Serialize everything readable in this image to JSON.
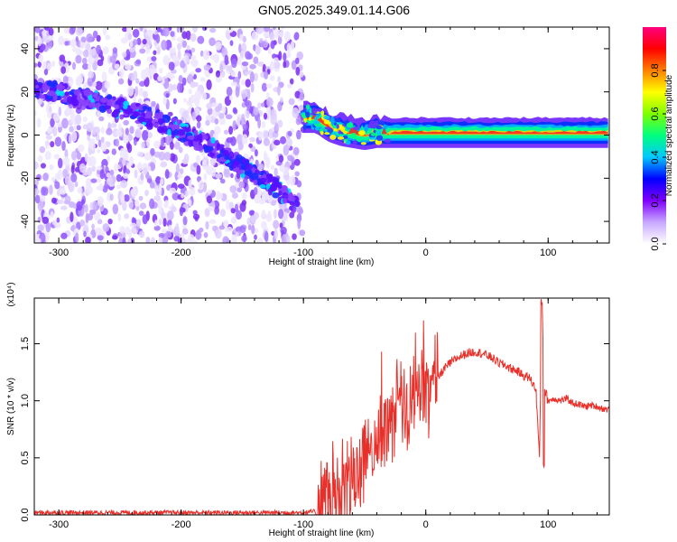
{
  "title": "GN05.2025.349.01.14.G06",
  "chart_data": [
    {
      "type": "heatmap",
      "xlabel": "Height of straight line (km)",
      "ylabel": "Frequency (Hz)",
      "xlim": [
        -320,
        150
      ],
      "ylim": [
        -50,
        50
      ],
      "xticks": [
        -300,
        -200,
        -100,
        0,
        100
      ],
      "yticks": [
        -40,
        -20,
        0,
        20,
        40
      ],
      "colorbar": {
        "label": "Normalized spectral amplitude",
        "range": [
          0.0,
          1.0
        ],
        "ticks": [
          "0.0",
          "0.2",
          "0.4",
          "0.6",
          "0.8"
        ],
        "colors": [
          "#ffffff",
          "#c8a8ff",
          "#8000ff",
          "#0000ff",
          "#00c8ff",
          "#00ff80",
          "#80ff00",
          "#ffff00",
          "#ff8000",
          "#ff0000",
          "#ff0080"
        ]
      },
      "ridge": [
        {
          "x": -320,
          "y": 22
        },
        {
          "x": -300,
          "y": 20
        },
        {
          "x": -280,
          "y": 17
        },
        {
          "x": -260,
          "y": 14
        },
        {
          "x": -240,
          "y": 11
        },
        {
          "x": -220,
          "y": 7
        },
        {
          "x": -200,
          "y": 2
        },
        {
          "x": -180,
          "y": -4
        },
        {
          "x": -160,
          "y": -11
        },
        {
          "x": -140,
          "y": -18
        },
        {
          "x": -120,
          "y": -25
        },
        {
          "x": -105,
          "y": -34
        },
        {
          "x": -100,
          "y": 8
        },
        {
          "x": -90,
          "y": 8
        },
        {
          "x": -80,
          "y": 4
        },
        {
          "x": -70,
          "y": 2
        },
        {
          "x": -60,
          "y": 1
        },
        {
          "x": -50,
          "y": 0
        },
        {
          "x": -40,
          "y": 1
        },
        {
          "x": -20,
          "y": 1
        },
        {
          "x": 0,
          "y": 1
        },
        {
          "x": 20,
          "y": 1
        },
        {
          "x": 40,
          "y": 1
        },
        {
          "x": 60,
          "y": 1
        },
        {
          "x": 80,
          "y": 1
        },
        {
          "x": 100,
          "y": 1
        },
        {
          "x": 120,
          "y": 1
        },
        {
          "x": 150,
          "y": 1
        }
      ]
    },
    {
      "type": "line",
      "xlabel": "Height of straight line (km)",
      "ylabel": "SNR (10 * v/v)",
      "ylabel_scale": "(x10⁴)",
      "xlim": [
        -320,
        150
      ],
      "ylim": [
        0.0,
        1.9
      ],
      "xticks": [
        -300,
        -200,
        -100,
        0,
        100
      ],
      "yticks": [
        "0.0",
        "0.5",
        "1.0",
        "1.5"
      ],
      "color": "#e8302a",
      "series": [
        {
          "x": [
            -320,
            -300,
            -280,
            -260,
            -240,
            -220,
            -200,
            -180,
            -160,
            -140,
            -120,
            -100,
            -90,
            -80,
            -75,
            -70,
            -65,
            -60,
            -55,
            -50,
            -45,
            -40,
            -35,
            -30,
            -25,
            -20,
            -15,
            -10,
            -5,
            0,
            5,
            10,
            15,
            20,
            25,
            30,
            35,
            40,
            45,
            50,
            55,
            60,
            65,
            70,
            75,
            80,
            85,
            90,
            93,
            95,
            97,
            100,
            105,
            110,
            115,
            120,
            125,
            130,
            135,
            140,
            145,
            150
          ],
          "y": [
            0.02,
            0.02,
            0.02,
            0.02,
            0.02,
            0.02,
            0.02,
            0.02,
            0.02,
            0.02,
            0.02,
            0.02,
            0.03,
            0.1,
            0.15,
            0.2,
            0.25,
            0.3,
            0.38,
            0.45,
            0.55,
            0.62,
            0.75,
            0.85,
            0.95,
            0.9,
            0.92,
            1.0,
            1.05,
            1.08,
            1.15,
            1.2,
            1.28,
            1.33,
            1.37,
            1.4,
            1.42,
            1.43,
            1.42,
            1.4,
            1.37,
            1.33,
            1.31,
            1.28,
            1.26,
            1.22,
            1.2,
            1.1,
            0.5,
            1.88,
            1.1,
            1.0,
            1.02,
            1.0,
            1.02,
            0.98,
            0.97,
            0.95,
            0.96,
            0.95,
            0.93,
            0.92
          ]
        }
      ]
    }
  ]
}
